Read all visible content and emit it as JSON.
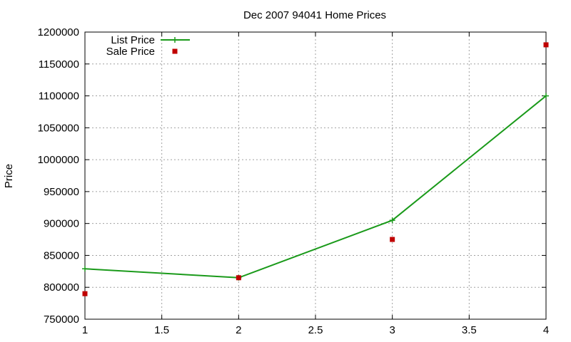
{
  "chart_data": {
    "type": "line",
    "title": "Dec 2007 94041 Home Prices",
    "xlabel": "",
    "ylabel": "Price",
    "xlim": [
      1,
      4
    ],
    "ylim": [
      750000,
      1200000
    ],
    "x_ticks": [
      "1",
      "1.5",
      "2",
      "2.5",
      "3",
      "3.5",
      "4"
    ],
    "y_ticks": [
      "750000",
      "800000",
      "850000",
      "900000",
      "950000",
      "1000000",
      "1050000",
      "1100000",
      "1150000",
      "1200000"
    ],
    "grid": true,
    "legend_position": "top-left",
    "series": [
      {
        "name": "List Price",
        "style": "lines+points",
        "marker": "plus",
        "color": "#1a9a1a",
        "x": [
          1,
          2,
          3,
          4
        ],
        "y": [
          829000,
          815000,
          905000,
          1100000
        ]
      },
      {
        "name": "Sale Price",
        "style": "points",
        "marker": "square",
        "color": "#c00000",
        "x": [
          1,
          2,
          3,
          4
        ],
        "y": [
          790000,
          815000,
          875000,
          1180000
        ]
      }
    ]
  }
}
